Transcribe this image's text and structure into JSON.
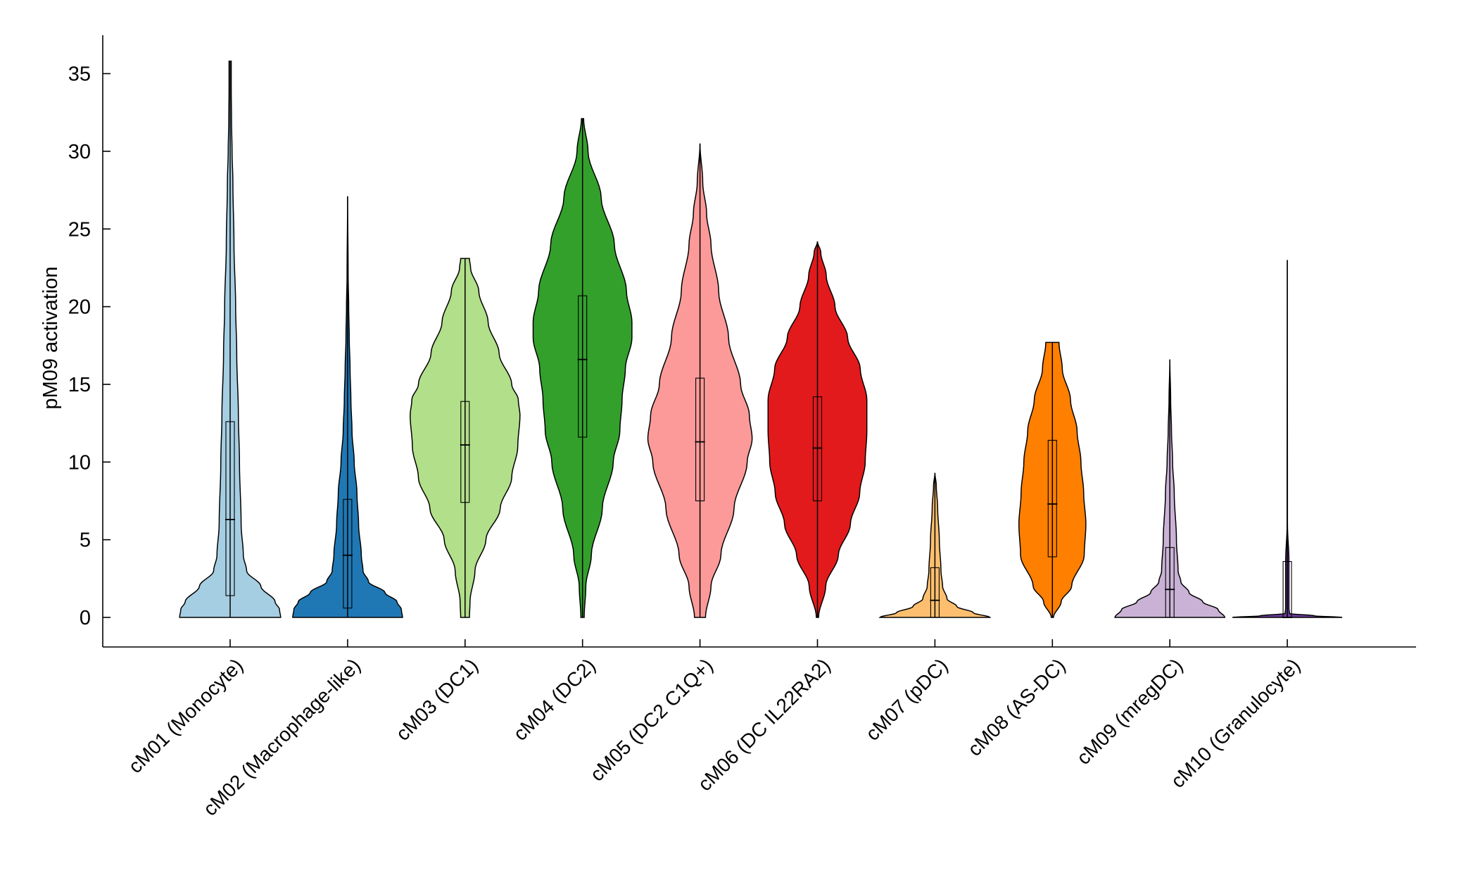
{
  "chart_data": {
    "type": "violin",
    "title": "",
    "xlabel": "",
    "ylabel": "pM09 activation",
    "ylim": [
      -1.8,
      37.5
    ],
    "yticks": [
      0,
      5,
      10,
      15,
      20,
      25,
      30,
      35
    ],
    "categories": [
      "cM01 (Monocyte)",
      "cM02 (Macrophage-like)",
      "cM03 (DC1)",
      "cM04 (DC2)",
      "cM05 (DC2 C1Q+)",
      "cM06 (DC IL22RA2)",
      "cM07 (pDC)",
      "cM08 (AS-DC)",
      "cM09 (mregDC)",
      "cM10 (Granulocyte)"
    ],
    "series": [
      {
        "name": "cM01 (Monocyte)",
        "color": "#a6cee3",
        "min": 0,
        "q1": 1.4,
        "median": 6.3,
        "q3": 12.6,
        "max": 35.8,
        "profile": [
          [
            0,
            0.92
          ],
          [
            0.5,
            0.9
          ],
          [
            1,
            0.82
          ],
          [
            2,
            0.56
          ],
          [
            3,
            0.3
          ],
          [
            4,
            0.24
          ],
          [
            6,
            0.2
          ],
          [
            10,
            0.17
          ],
          [
            13,
            0.15
          ],
          [
            17,
            0.12
          ],
          [
            20,
            0.1
          ],
          [
            24,
            0.07
          ],
          [
            28,
            0.05
          ],
          [
            30,
            0.035
          ],
          [
            32,
            0.025
          ],
          [
            34,
            0.02
          ],
          [
            35.8,
            0.02
          ]
        ]
      },
      {
        "name": "cM02 (Macrophage-like)",
        "color": "#1f78b4",
        "min": 0,
        "q1": 0.6,
        "median": 4.0,
        "q3": 7.6,
        "max": 27.1,
        "profile": [
          [
            0,
            1.0
          ],
          [
            0.5,
            0.98
          ],
          [
            1,
            0.9
          ],
          [
            1.6,
            0.68
          ],
          [
            2.3,
            0.38
          ],
          [
            3,
            0.28
          ],
          [
            4,
            0.25
          ],
          [
            6,
            0.2
          ],
          [
            8,
            0.17
          ],
          [
            10,
            0.12
          ],
          [
            12,
            0.08
          ],
          [
            14,
            0.06
          ],
          [
            16,
            0.045
          ],
          [
            18,
            0.03
          ],
          [
            20,
            0.02
          ],
          [
            22,
            0.01
          ],
          [
            27.1,
            0.0
          ]
        ]
      },
      {
        "name": "cM03 (DC1)",
        "color": "#b2df8a",
        "min": 0,
        "q1": 7.4,
        "median": 11.1,
        "q3": 13.9,
        "max": 23.1,
        "profile": [
          [
            0,
            0.08
          ],
          [
            1,
            0.09
          ],
          [
            3,
            0.18
          ],
          [
            5,
            0.38
          ],
          [
            7,
            0.64
          ],
          [
            9,
            0.85
          ],
          [
            11,
            0.96
          ],
          [
            13,
            1.0
          ],
          [
            14,
            0.97
          ],
          [
            15,
            0.85
          ],
          [
            17,
            0.62
          ],
          [
            19,
            0.42
          ],
          [
            21,
            0.25
          ],
          [
            22.5,
            0.1
          ],
          [
            23.1,
            0.08
          ]
        ]
      },
      {
        "name": "cM04 (DC2)",
        "color": "#33a02c",
        "min": 0,
        "q1": 11.6,
        "median": 16.6,
        "q3": 20.7,
        "max": 32.1,
        "profile": [
          [
            0,
            0.03
          ],
          [
            2,
            0.06
          ],
          [
            4,
            0.16
          ],
          [
            7,
            0.36
          ],
          [
            10,
            0.56
          ],
          [
            12,
            0.68
          ],
          [
            14,
            0.72
          ],
          [
            16,
            0.78
          ],
          [
            18,
            0.9
          ],
          [
            19,
            0.9
          ],
          [
            21,
            0.8
          ],
          [
            24,
            0.58
          ],
          [
            27,
            0.34
          ],
          [
            30,
            0.1
          ],
          [
            32.1,
            0.02
          ]
        ]
      },
      {
        "name": "cM05 (DC2 C1Q+)",
        "color": "#fb9a99",
        "min": 0,
        "q1": 7.5,
        "median": 11.3,
        "q3": 15.4,
        "max": 30.5,
        "profile": [
          [
            0,
            0.1
          ],
          [
            2,
            0.2
          ],
          [
            4,
            0.38
          ],
          [
            7,
            0.62
          ],
          [
            10,
            0.86
          ],
          [
            11.5,
            0.95
          ],
          [
            13,
            0.9
          ],
          [
            15,
            0.74
          ],
          [
            18,
            0.52
          ],
          [
            21,
            0.34
          ],
          [
            24,
            0.2
          ],
          [
            26,
            0.12
          ],
          [
            28,
            0.05
          ],
          [
            30.5,
            0.0
          ]
        ]
      },
      {
        "name": "cM06 (DC IL22RA2)",
        "color": "#e31a1c",
        "min": 0,
        "q1": 7.5,
        "median": 10.9,
        "q3": 14.2,
        "max": 24.2,
        "profile": [
          [
            0,
            0.02
          ],
          [
            2,
            0.15
          ],
          [
            4,
            0.38
          ],
          [
            6,
            0.6
          ],
          [
            8,
            0.77
          ],
          [
            10,
            0.87
          ],
          [
            12,
            0.9
          ],
          [
            14,
            0.9
          ],
          [
            16,
            0.78
          ],
          [
            18,
            0.55
          ],
          [
            20,
            0.32
          ],
          [
            22,
            0.16
          ],
          [
            23.5,
            0.06
          ],
          [
            24.2,
            0.0
          ]
        ]
      },
      {
        "name": "cM07 (pDC)",
        "color": "#fdbf6f",
        "min": 0,
        "q1": 0,
        "median": 1.1,
        "q3": 3.2,
        "max": 9.3,
        "profile": [
          [
            0,
            1.0
          ],
          [
            0.3,
            0.7
          ],
          [
            0.7,
            0.4
          ],
          [
            1.2,
            0.22
          ],
          [
            2,
            0.14
          ],
          [
            3,
            0.11
          ],
          [
            5,
            0.08
          ],
          [
            7,
            0.05
          ],
          [
            8.5,
            0.025
          ],
          [
            9.3,
            0.0
          ]
        ]
      },
      {
        "name": "cM08 (AS-DC)",
        "color": "#ff7f00",
        "min": 0,
        "q1": 3.9,
        "median": 7.3,
        "q3": 11.4,
        "max": 17.7,
        "profile": [
          [
            0,
            0.02
          ],
          [
            1,
            0.16
          ],
          [
            2,
            0.35
          ],
          [
            4,
            0.58
          ],
          [
            6,
            0.61
          ],
          [
            8,
            0.57
          ],
          [
            10,
            0.52
          ],
          [
            12,
            0.45
          ],
          [
            14,
            0.33
          ],
          [
            16,
            0.18
          ],
          [
            17.7,
            0.12
          ]
        ]
      },
      {
        "name": "cM09 (mregDC)",
        "color": "#cab2d6",
        "min": 0,
        "q1": 0,
        "median": 1.8,
        "q3": 4.5,
        "max": 16.6,
        "profile": [
          [
            0,
            1.0
          ],
          [
            0.5,
            0.88
          ],
          [
            1,
            0.6
          ],
          [
            1.6,
            0.35
          ],
          [
            2.3,
            0.2
          ],
          [
            3,
            0.15
          ],
          [
            5,
            0.12
          ],
          [
            8,
            0.08
          ],
          [
            10,
            0.05
          ],
          [
            12,
            0.03
          ],
          [
            14,
            0.015
          ],
          [
            16.6,
            0.0
          ]
        ]
      },
      {
        "name": "cM10 (Granulocyte)",
        "color": "#6a3d9a",
        "min": 0,
        "q1": 0,
        "median": 0,
        "q3": 3.6,
        "max": 23.0,
        "profile": [
          [
            0,
            1.0
          ],
          [
            0.1,
            0.5
          ],
          [
            0.25,
            0.04
          ],
          [
            0.6,
            0.03
          ],
          [
            3.6,
            0.03
          ],
          [
            6,
            0.003
          ],
          [
            23,
            0.0
          ]
        ]
      }
    ]
  }
}
